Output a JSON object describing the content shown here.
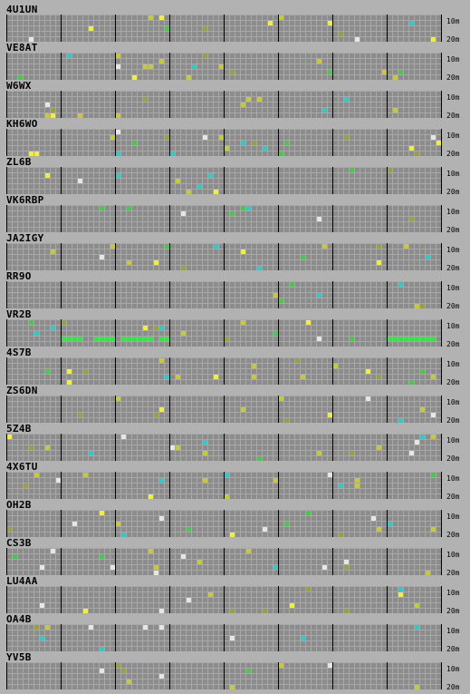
{
  "band_labels": {
    "top": "10m",
    "bottom": "20m"
  },
  "colors": {
    "background": "#b2b2b2",
    "grid_cell": "#8c8c8c",
    "grid_line": "#a8a8a8",
    "block_divider": "#000000",
    "signal_yellow": "#c8c83c",
    "signal_bright_yellow": "#f0f03c",
    "signal_green": "#46c84a",
    "signal_bright_green": "#32e646",
    "signal_cyan": "#32c8c8",
    "signal_white": "#e6e6e6",
    "signal_olive": "#9aa03c"
  },
  "stations": [
    {
      "call": "4U1UN"
    },
    {
      "call": "VE8AT"
    },
    {
      "call": "W6WX"
    },
    {
      "call": "KH6WO"
    },
    {
      "call": "ZL6B"
    },
    {
      "call": "VK6RBP"
    },
    {
      "call": "JA2IGY"
    },
    {
      "call": "RR9O"
    },
    {
      "call": "VR2B"
    },
    {
      "call": "4S7B"
    },
    {
      "call": "ZS6DN"
    },
    {
      "call": "5Z4B"
    },
    {
      "call": "4X6TU"
    },
    {
      "call": "OH2B"
    },
    {
      "call": "CS3B"
    },
    {
      "call": "LU4AA"
    },
    {
      "call": "OA4B"
    },
    {
      "call": "YV5B"
    }
  ]
}
